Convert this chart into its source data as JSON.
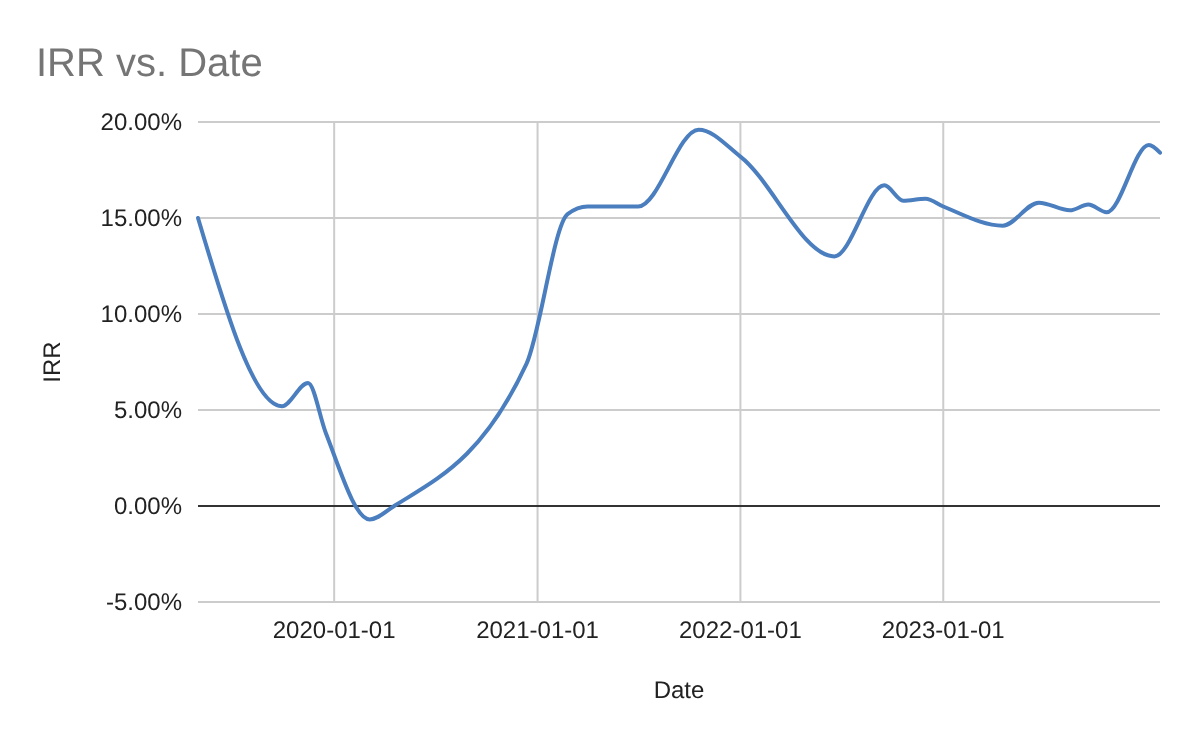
{
  "chart_data": {
    "type": "line",
    "title": "IRR vs. Date",
    "xlabel": "Date",
    "ylabel": "IRR",
    "x": [
      "2019-05-01",
      "2019-09-29",
      "2019-11-15",
      "2019-12-17",
      "2020-03-05",
      "2020-04-18",
      "2020-12-12",
      "2021-02-24",
      "2021-04-01",
      "2021-07-01",
      "2021-10-18",
      "2022-01-01",
      "2022-06-19",
      "2022-09-17",
      "2022-10-21",
      "2022-11-30",
      "2023-01-01",
      "2023-04-18",
      "2023-06-22",
      "2023-08-17",
      "2023-09-19",
      "2023-10-22",
      "2024-01-06",
      "2024-01-26"
    ],
    "series": [
      {
        "color": "#4a7ebf",
        "values": [
          15.0,
          5.2,
          6.4,
          3.8,
          -0.7,
          0,
          7.4,
          15.2,
          15.6,
          15.6,
          19.6,
          18.2,
          13.0,
          16.7,
          15.9,
          16.0,
          15.6,
          14.6,
          15.8,
          15.4,
          15.7,
          15.3,
          18.8,
          18.4
        ]
      }
    ],
    "xlim": [
      "2019-05-01",
      "2024-01-26"
    ],
    "xticks": [
      "2020-01-01",
      "2021-01-01",
      "2022-01-01",
      "2023-01-01"
    ],
    "ylim": [
      -5,
      20
    ],
    "yticks": [
      {
        "value": -5,
        "label": "-5.00%"
      },
      {
        "value": 0,
        "label": "0.00%"
      },
      {
        "value": 5,
        "label": "5.00%"
      },
      {
        "value": 10,
        "label": "10.00%"
      },
      {
        "value": 15,
        "label": "15.00%"
      },
      {
        "value": 20,
        "label": "20.00%"
      }
    ],
    "ref_lines": [
      {
        "axis": "y",
        "value": 0,
        "color": "#333333"
      }
    ],
    "grid": true,
    "marker": "none",
    "line_style": "solid"
  }
}
